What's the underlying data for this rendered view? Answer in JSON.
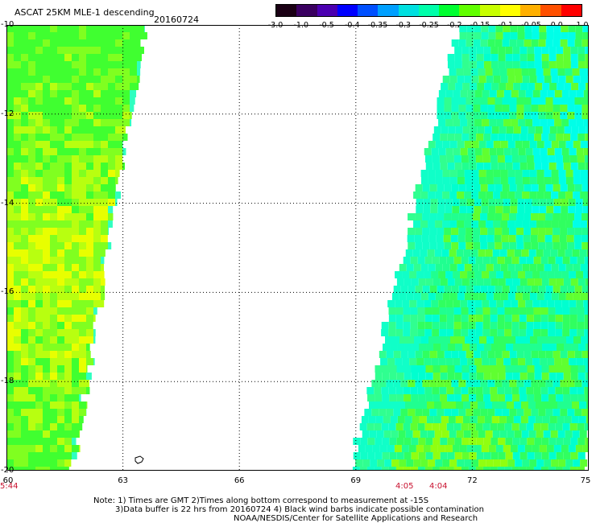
{
  "header": {
    "title": "ASCAT 25KM MLE-1 descending",
    "date": "20160724"
  },
  "colorbar": {
    "labels": [
      "-3.0",
      "-1.0",
      "-0.5",
      "-0.4",
      "-0.35",
      "-0.3",
      "-0.25",
      "-0.2",
      "-0.15",
      "-0.1",
      "-0.05",
      "0.0",
      "1.0"
    ],
    "colors": [
      "#1a0014",
      "#3a0060",
      "#4b00b0",
      "#0000ff",
      "#0050ff",
      "#00a0ff",
      "#00e0e0",
      "#00ffaa",
      "#00ff30",
      "#60ff00",
      "#c8ff00",
      "#ffff00",
      "#ffb000",
      "#ff5000",
      "#ff0000"
    ]
  },
  "axes": {
    "lat_labels": [
      "-10",
      "-12",
      "-14",
      "-16",
      "-18",
      "-20"
    ],
    "lon_labels": [
      "60",
      "63",
      "66",
      "69",
      "72",
      "75"
    ]
  },
  "times": {
    "left": "5:44",
    "mid1": "4:05",
    "mid2": "4:04"
  },
  "notes": {
    "line1": "Note: 1) Times are GMT 2)Times along bottom correspond to measurement at -15S",
    "line2": "3)Data buffer is 22 hrs from 20160724 4) Black wind barbs indicate possible contamination",
    "line3": "NOAA/NESDIS/Center for Satellite Applications and Research"
  },
  "map_data": {
    "lon_range": [
      60,
      75
    ],
    "lat_range": [
      -20,
      -10
    ]
  }
}
